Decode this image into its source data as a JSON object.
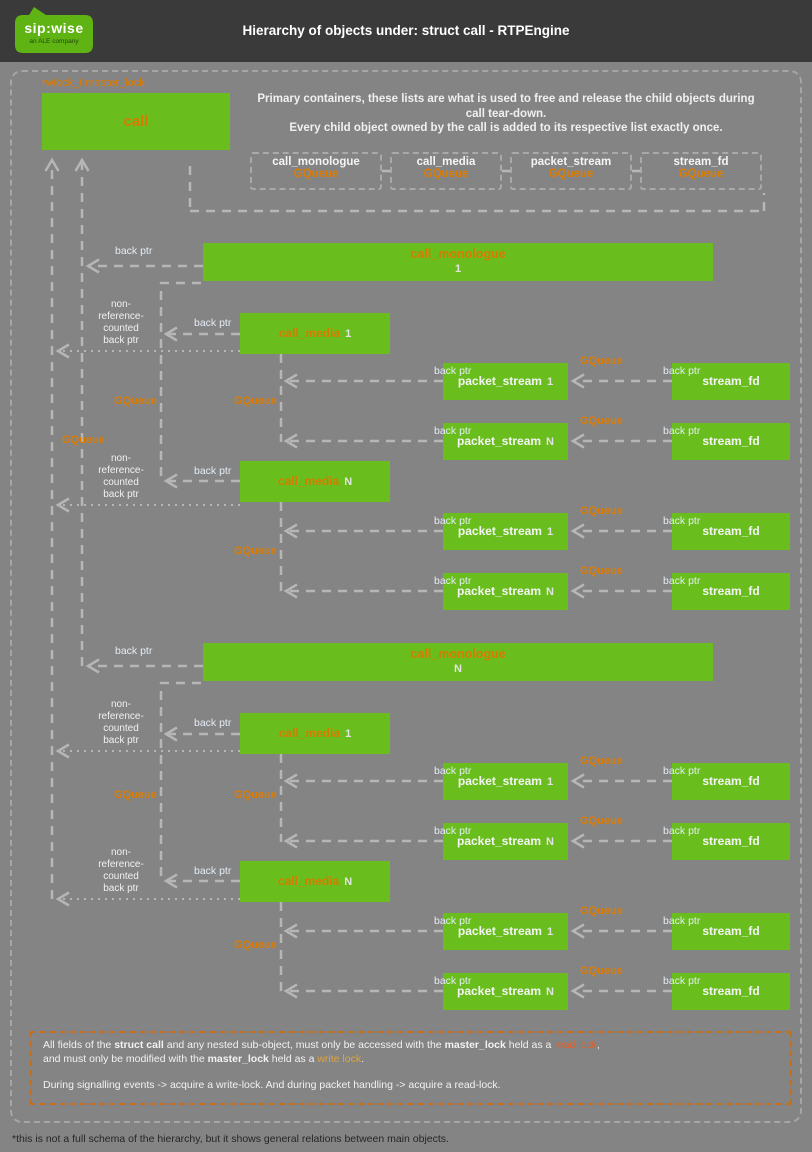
{
  "header": {
    "title": "Hierarchy of objects under: struct call - RTPEngine",
    "logo_brand": "sip:wise",
    "logo_tagline": "an ALE company"
  },
  "intro": {
    "line1": "Primary containers, these lists are what is used to free and release the child objects during call tear-down.",
    "line2": "Every child object owned by the call is added to its respective list exactly once."
  },
  "labels": {
    "master_lock": "rwlock_t master_lock",
    "back_ptr": "back ptr",
    "gqueue": "GQueue",
    "non_ref": "non-\nreference-\ncounted\nback ptr",
    "one": "1",
    "n": "N"
  },
  "nodes": {
    "call": "call",
    "call_monologue": "call_monologue",
    "call_media": "call_media",
    "packet_stream": "packet_stream",
    "stream_fd": "stream_fd"
  },
  "containers": [
    {
      "name": "call_monologue",
      "type": "GQueue"
    },
    {
      "name": "call_media",
      "type": "GQueue"
    },
    {
      "name": "packet_stream",
      "type": "GQueue"
    },
    {
      "name": "stream_fd",
      "type": "GQueue"
    }
  ],
  "note": {
    "p1_1": "All fields of the ",
    "p1_b1": "struct call",
    "p1_2": " and any nested sub-object, must only be accessed with the ",
    "p1_b2": "master_lock",
    "p1_3": " held as a ",
    "p1_read": "read lock",
    "p1_4": ",",
    "p2_1": "and must only be modified with the ",
    "p2_b1": "master_lock",
    "p2_2": " held as a ",
    "p2_write": "write lock",
    "p2_3": ".",
    "p3": "During signalling events -> acquire a write-lock. And during packet handling -> acquire a read-lock."
  },
  "footnote": "*this is not a full schema of the hierarchy, but it shows general relations between main objects.",
  "colors": {
    "green": "#69be1d",
    "orange": "#dd7c00",
    "line_gray": "#b6b6b6",
    "read_lock": "#e0622a",
    "write_lock": "#dfa53a"
  }
}
